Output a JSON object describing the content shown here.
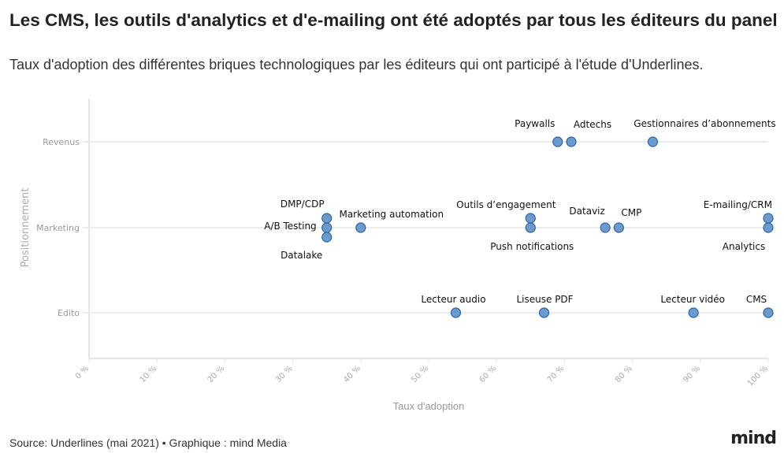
{
  "title": "Les CMS, les outils d'analytics et d'e-mailing ont été adoptés par tous les éditeurs du panel",
  "subtitle": "Taux d'adoption des différentes briques technologiques par les éditeurs qui ont participé à l'étude d'Underlines.",
  "source": "Source: Underlines (mai 2021) • Graphique : mind Media",
  "logo": "mind",
  "chart_data": {
    "type": "scatter",
    "xlabel": "Taux d'adoption",
    "ylabel": "Positionnement",
    "xlim": [
      0,
      100
    ],
    "x_ticks": [
      "0 %",
      "10 %",
      "20 %",
      "30 %",
      "40 %",
      "50 %",
      "60 %",
      "70 %",
      "80 %",
      "90 %",
      "100 %"
    ],
    "categories": [
      "Revenus",
      "Marketing",
      "Edito"
    ],
    "grid": true,
    "point_color": "#6b9bcd",
    "points": [
      {
        "label": "Paywalls",
        "category": "Revenus",
        "x": 69
      },
      {
        "label": "Adtechs",
        "category": "Revenus",
        "x": 71
      },
      {
        "label": "Gestionnaires d’abonnements",
        "category": "Revenus",
        "x": 83
      },
      {
        "label": "DMP/CDP",
        "category": "Marketing",
        "x": 35
      },
      {
        "label": "A/B Testing",
        "category": "Marketing",
        "x": 35
      },
      {
        "label": "Datalake",
        "category": "Marketing",
        "x": 35
      },
      {
        "label": "Marketing automation",
        "category": "Marketing",
        "x": 40
      },
      {
        "label": "Outils d’engagement",
        "category": "Marketing",
        "x": 65
      },
      {
        "label": "Push notifications",
        "category": "Marketing",
        "x": 65
      },
      {
        "label": "Dataviz",
        "category": "Marketing",
        "x": 76
      },
      {
        "label": "CMP",
        "category": "Marketing",
        "x": 78
      },
      {
        "label": "E-mailing/CRM",
        "category": "Marketing",
        "x": 100
      },
      {
        "label": "Analytics",
        "category": "Marketing",
        "x": 100
      },
      {
        "label": "Lecteur audio",
        "category": "Edito",
        "x": 54
      },
      {
        "label": "Liseuse PDF",
        "category": "Edito",
        "x": 67
      },
      {
        "label": "Lecteur vidéo",
        "category": "Edito",
        "x": 89
      },
      {
        "label": "CMS",
        "category": "Edito",
        "x": 100
      }
    ]
  }
}
